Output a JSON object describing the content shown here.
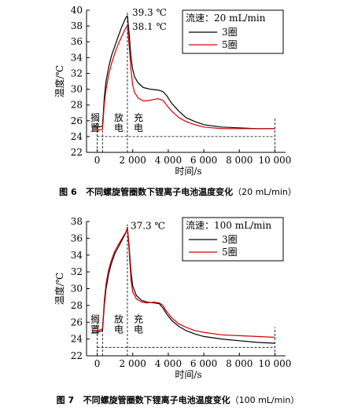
{
  "figures": [
    {
      "caption_label": "图 6",
      "caption_text": "不同螺旋管圈数下锂离子电池温度变化",
      "caption_unit": "（20 mL/min）"
    },
    {
      "caption_label": "图 7",
      "caption_text": "不同螺旋管圈数下锂离子电池温度变化",
      "caption_unit": "（100 mL/min）"
    }
  ],
  "chart_data": [
    {
      "type": "line",
      "xlabel": "时间/s",
      "ylabel": "温度/℃",
      "xlim": [
        -600,
        10600
      ],
      "ylim": [
        22,
        40
      ],
      "xticks": [
        0,
        2000,
        4000,
        6000,
        8000,
        10000
      ],
      "xtick_labels": [
        "0",
        "2 000",
        "4 000",
        "6 000",
        "8 000",
        "10 000"
      ],
      "yticks": [
        22,
        24,
        26,
        28,
        30,
        32,
        34,
        36,
        38,
        40
      ],
      "legend_title": "流速：20 mL/min",
      "legend_position": "top-right",
      "phases": [
        "搁置",
        "放电",
        "充电"
      ],
      "phase_boundaries_x": [
        0,
        300,
        1700
      ],
      "end_marker_x": 10000,
      "baseline_y": 24,
      "annotations": [
        {
          "text": "39.3 ℃",
          "x": 1700,
          "y": 39.3
        },
        {
          "text": "38.1 ℃",
          "x": 1700,
          "y": 38.1
        }
      ],
      "series": [
        {
          "name": "3圈",
          "color": "#000000",
          "x": [
            -300,
            0,
            300,
            400,
            500,
            650,
            800,
            1000,
            1200,
            1400,
            1600,
            1700,
            1800,
            1900,
            2000,
            2100,
            2300,
            2600,
            3000,
            3400,
            3700,
            3900,
            4200,
            4600,
            5000,
            5500,
            6000,
            7000,
            8000,
            9000,
            10000
          ],
          "y": [
            25.2,
            25.2,
            25.3,
            29.0,
            31.0,
            32.8,
            34.2,
            35.5,
            36.8,
            38.0,
            39.0,
            39.3,
            37.0,
            34.0,
            32.5,
            31.6,
            30.8,
            30.2,
            30.0,
            29.9,
            29.7,
            29.2,
            28.2,
            27.2,
            26.4,
            25.9,
            25.5,
            25.2,
            25.1,
            25.0,
            25.0
          ]
        },
        {
          "name": "5圈",
          "color": "#d40000",
          "x": [
            -300,
            0,
            300,
            400,
            500,
            650,
            800,
            1000,
            1200,
            1400,
            1600,
            1700,
            1800,
            1900,
            2000,
            2100,
            2300,
            2600,
            3000,
            3400,
            3700,
            3900,
            4200,
            4600,
            5000,
            5500,
            6000,
            7000,
            8000,
            9000,
            10000
          ],
          "y": [
            24.8,
            24.8,
            24.9,
            28.2,
            30.0,
            31.8,
            33.2,
            34.6,
            35.8,
            36.8,
            37.7,
            38.1,
            35.5,
            32.5,
            30.5,
            29.6,
            28.9,
            28.5,
            28.6,
            28.8,
            28.6,
            28.0,
            27.2,
            26.4,
            25.9,
            25.5,
            25.2,
            25.0,
            25.0,
            25.0,
            25.0
          ]
        }
      ]
    },
    {
      "type": "line",
      "xlabel": "时间/s",
      "ylabel": "温度/℃",
      "xlim": [
        -600,
        10600
      ],
      "ylim": [
        22,
        38
      ],
      "xticks": [
        0,
        2000,
        4000,
        6000,
        8000,
        10000
      ],
      "xtick_labels": [
        "0",
        "2 000",
        "4 000",
        "6 000",
        "8 000",
        "10 000"
      ],
      "yticks": [
        22,
        24,
        26,
        28,
        30,
        32,
        34,
        36,
        38
      ],
      "legend_title": "流速：100 mL/min",
      "legend_position": "top-right",
      "phases": [
        "搁置",
        "放电",
        "充电"
      ],
      "phase_boundaries_x": [
        0,
        300,
        1700
      ],
      "end_marker_x": 10000,
      "baseline_y": 23,
      "annotations": [
        {
          "text": "37.3 ℃",
          "x": 1700,
          "y": 37.3
        }
      ],
      "series": [
        {
          "name": "3圈",
          "color": "#000000",
          "x": [
            -300,
            0,
            300,
            400,
            500,
            650,
            800,
            1000,
            1200,
            1400,
            1600,
            1700,
            1800,
            1900,
            2000,
            2200,
            2500,
            2800,
            3200,
            3500,
            3700,
            3900,
            4200,
            4600,
            5000,
            5500,
            6000,
            7000,
            8000,
            9000,
            10000
          ],
          "y": [
            24.8,
            24.8,
            25.0,
            28.0,
            30.0,
            31.8,
            33.0,
            34.2,
            35.0,
            35.8,
            36.6,
            37.3,
            35.0,
            32.0,
            30.3,
            29.2,
            28.6,
            28.4,
            28.3,
            28.2,
            27.7,
            27.0,
            26.2,
            25.5,
            25.0,
            24.6,
            24.3,
            24.0,
            23.8,
            23.6,
            23.5
          ]
        },
        {
          "name": "5圈",
          "color": "#d40000",
          "x": [
            -300,
            0,
            300,
            400,
            500,
            650,
            800,
            1000,
            1200,
            1400,
            1600,
            1700,
            1800,
            1900,
            2000,
            2200,
            2500,
            2800,
            3200,
            3500,
            3700,
            3900,
            4200,
            4600,
            5000,
            5500,
            6000,
            7000,
            8000,
            9000,
            10000
          ],
          "y": [
            25.0,
            25.0,
            25.2,
            28.6,
            30.6,
            32.3,
            33.4,
            34.5,
            35.3,
            36.0,
            36.7,
            37.2,
            34.5,
            31.0,
            29.6,
            28.8,
            28.4,
            28.3,
            28.4,
            28.3,
            28.0,
            27.3,
            26.5,
            25.8,
            25.4,
            25.0,
            24.8,
            24.5,
            24.4,
            24.3,
            24.2
          ]
        }
      ]
    }
  ]
}
